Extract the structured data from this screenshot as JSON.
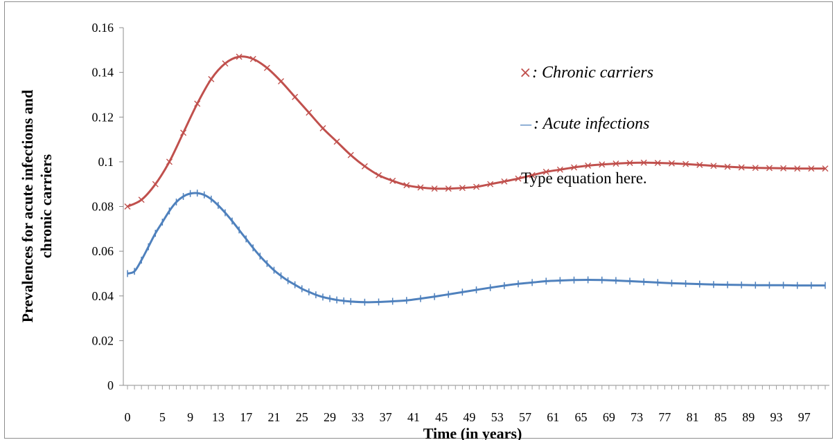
{
  "chart_data": {
    "type": "line",
    "title": "",
    "xlabel": "Time (in years)",
    "ylabel_lines": [
      "Prevalences for acute infections and",
      "chronic carriers"
    ],
    "ylim": [
      0,
      0.16
    ],
    "xlim": [
      0,
      100
    ],
    "y_ticks": [
      "0",
      "0.02",
      "0.04",
      "0.06",
      "0.08",
      "0.1",
      "0.12",
      "0.14",
      "0.16"
    ],
    "x_tick_labels": [
      "0",
      "5",
      "9",
      "13",
      "17",
      "21",
      "25",
      "29",
      "33",
      "37",
      "41",
      "45",
      "49",
      "53",
      "57",
      "61",
      "65",
      "69",
      "73",
      "77",
      "81",
      "85",
      "89",
      "93",
      "97"
    ],
    "grid": false,
    "legend_position": "upper-right",
    "series": [
      {
        "name": "Chronic carriers",
        "legend_label": ": Chronic carriers",
        "legend_marker": "×",
        "color": "#c0504d",
        "marker": "x",
        "points": [
          [
            0,
            0.08
          ],
          [
            2,
            0.083
          ],
          [
            4,
            0.09
          ],
          [
            6,
            0.1
          ],
          [
            8,
            0.113
          ],
          [
            10,
            0.126
          ],
          [
            12,
            0.137
          ],
          [
            14,
            0.144
          ],
          [
            16,
            0.147
          ],
          [
            18,
            0.146
          ],
          [
            20,
            0.142
          ],
          [
            22,
            0.136
          ],
          [
            24,
            0.129
          ],
          [
            26,
            0.122
          ],
          [
            28,
            0.115
          ],
          [
            30,
            0.109
          ],
          [
            32,
            0.103
          ],
          [
            34,
            0.098
          ],
          [
            36,
            0.094
          ],
          [
            38,
            0.0915
          ],
          [
            40,
            0.0895
          ],
          [
            42,
            0.0885
          ],
          [
            44,
            0.088
          ],
          [
            46,
            0.088
          ],
          [
            48,
            0.0883
          ],
          [
            50,
            0.0888
          ],
          [
            52,
            0.09
          ],
          [
            54,
            0.0912
          ],
          [
            56,
            0.0925
          ],
          [
            58,
            0.094
          ],
          [
            60,
            0.0955
          ],
          [
            62,
            0.0965
          ],
          [
            64,
            0.0975
          ],
          [
            66,
            0.0983
          ],
          [
            68,
            0.0988
          ],
          [
            70,
            0.0992
          ],
          [
            72,
            0.0995
          ],
          [
            74,
            0.0996
          ],
          [
            76,
            0.0995
          ],
          [
            78,
            0.0993
          ],
          [
            80,
            0.099
          ],
          [
            82,
            0.0986
          ],
          [
            84,
            0.0982
          ],
          [
            86,
            0.0978
          ],
          [
            88,
            0.0975
          ],
          [
            90,
            0.0973
          ],
          [
            92,
            0.0972
          ],
          [
            94,
            0.0971
          ],
          [
            96,
            0.097
          ],
          [
            98,
            0.097
          ],
          [
            100,
            0.097
          ]
        ]
      },
      {
        "name": "Acute infections",
        "legend_label": ": Acute infections",
        "legend_marker": "—",
        "color": "#4f81bd",
        "marker": "|",
        "points": [
          [
            0,
            0.05
          ],
          [
            1,
            0.051
          ],
          [
            2,
            0.056
          ],
          [
            3,
            0.062
          ],
          [
            4,
            0.068
          ],
          [
            5,
            0.073
          ],
          [
            6,
            0.078
          ],
          [
            7,
            0.082
          ],
          [
            8,
            0.0845
          ],
          [
            9,
            0.0858
          ],
          [
            10,
            0.086
          ],
          [
            11,
            0.0852
          ],
          [
            12,
            0.0833
          ],
          [
            13,
            0.0805
          ],
          [
            14,
            0.0772
          ],
          [
            15,
            0.0735
          ],
          [
            16,
            0.0695
          ],
          [
            17,
            0.0655
          ],
          [
            18,
            0.0615
          ],
          [
            19,
            0.0578
          ],
          [
            20,
            0.0545
          ],
          [
            21,
            0.0515
          ],
          [
            22,
            0.049
          ],
          [
            23,
            0.0468
          ],
          [
            24,
            0.045
          ],
          [
            25,
            0.0432
          ],
          [
            26,
            0.0418
          ],
          [
            27,
            0.0405
          ],
          [
            28,
            0.0395
          ],
          [
            29,
            0.0388
          ],
          [
            30,
            0.0382
          ],
          [
            31,
            0.0378
          ],
          [
            32,
            0.0375
          ],
          [
            34,
            0.0372
          ],
          [
            36,
            0.0373
          ],
          [
            38,
            0.0376
          ],
          [
            40,
            0.038
          ],
          [
            42,
            0.0388
          ],
          [
            44,
            0.0397
          ],
          [
            46,
            0.0407
          ],
          [
            48,
            0.0417
          ],
          [
            50,
            0.0427
          ],
          [
            52,
            0.0437
          ],
          [
            54,
            0.0446
          ],
          [
            56,
            0.0454
          ],
          [
            58,
            0.046
          ],
          [
            60,
            0.0466
          ],
          [
            62,
            0.0469
          ],
          [
            64,
            0.0471
          ],
          [
            66,
            0.0472
          ],
          [
            68,
            0.0471
          ],
          [
            70,
            0.0469
          ],
          [
            72,
            0.0466
          ],
          [
            74,
            0.0463
          ],
          [
            76,
            0.046
          ],
          [
            78,
            0.0457
          ],
          [
            80,
            0.0455
          ],
          [
            82,
            0.0453
          ],
          [
            84,
            0.0451
          ],
          [
            86,
            0.045
          ],
          [
            88,
            0.0449
          ],
          [
            90,
            0.0448
          ],
          [
            92,
            0.0448
          ],
          [
            94,
            0.0448
          ],
          [
            96,
            0.0447
          ],
          [
            98,
            0.0447
          ],
          [
            100,
            0.0447
          ]
        ]
      }
    ],
    "annotation": "Type equation here."
  }
}
